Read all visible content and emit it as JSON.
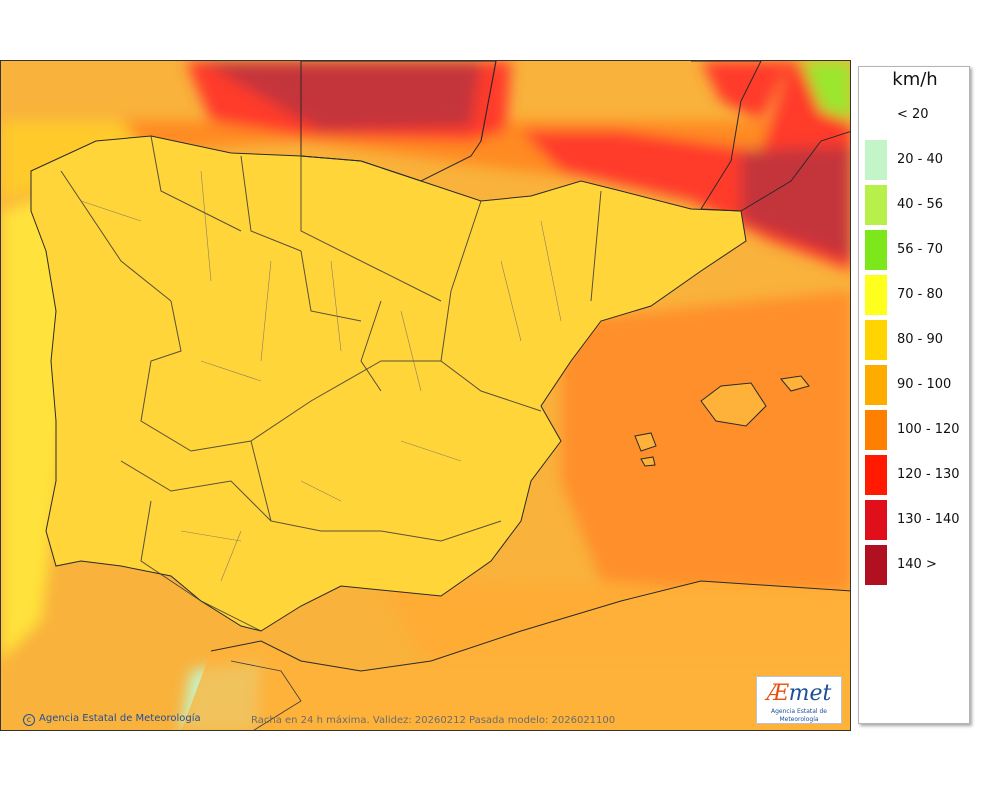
{
  "map": {
    "credit": "Agencia Estatal de Meteorología",
    "caption": "Racha en 24 h máxima. Validez: 20260212 Pasada modelo: 2026021100"
  },
  "logo": {
    "mark_ae": "Æ",
    "mark_rest": "met",
    "subtitle": "Agencia Estatal de Meteorología"
  },
  "legend": {
    "unit": "km/h",
    "items": [
      {
        "label": "< 20",
        "color": "#ffffff"
      },
      {
        "label": "20 - 40",
        "color": "#c4f5c8"
      },
      {
        "label": "40 - 56",
        "color": "#b7f04b"
      },
      {
        "label": "56 - 70",
        "color": "#7ce81c"
      },
      {
        "label": "70 - 80",
        "color": "#ffff1e"
      },
      {
        "label": "80 - 90",
        "color": "#ffd400"
      },
      {
        "label": "90 - 100",
        "color": "#ffac00"
      },
      {
        "label": "100 - 120",
        "color": "#ff7f00"
      },
      {
        "label": "120 - 130",
        "color": "#ff1a00"
      },
      {
        "label": "130 - 140",
        "color": "#e0101a"
      },
      {
        "label": "140 >",
        "color": "#b0101f"
      }
    ]
  }
}
